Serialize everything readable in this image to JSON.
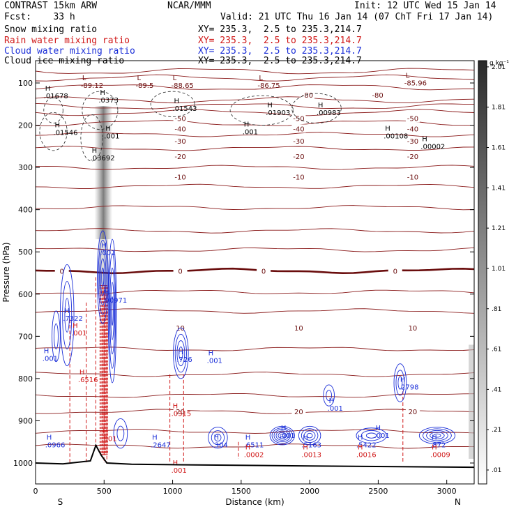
{
  "header": {
    "title": "CONTRAST 15km ARW",
    "forecast": "Fcst:    33 h",
    "center": "NCAR/MMM",
    "init": "Init: 12 UTC Wed 15 Jan 14",
    "valid": "Valid: 21 UTC Thu 16 Jan 14 (07 ChT Fri 17 Jan 14)",
    "fields": [
      {
        "label": "Snow mixing ratio",
        "xy": "XY= 235.3,  2.5 to 235.3,214.7",
        "color": "#000000"
      },
      {
        "label": "Rain water mixing ratio",
        "xy": "XY= 235.3,  2.5 to 235.3,214.7",
        "color": "#d01818"
      },
      {
        "label": "Cloud water mixing ratio",
        "xy": "XY= 235.3,  2.5 to 235.3,214.7",
        "color": "#1a2ed8"
      },
      {
        "label": "Cloud ice mixing ratio",
        "xy": "XY= 235.3,  2.5 to 235.3,214.7",
        "color": "#000000"
      }
    ]
  },
  "chart_data": {
    "type": "heatmap",
    "title": "Vertical cross-section",
    "xlabel": "Distance (km)",
    "ylabel": "Pressure (hPa)",
    "xlim": [
      0,
      3200
    ],
    "ylim": [
      1050,
      60
    ],
    "xticks": [
      0,
      500,
      1000,
      1500,
      2000,
      2500,
      3000
    ],
    "yticks": [
      100,
      200,
      300,
      400,
      500,
      600,
      700,
      800,
      900,
      1000
    ],
    "end_labels": {
      "left": "S",
      "right": "N"
    },
    "colorbar": {
      "unit": "g kg⁻¹",
      "ticks": [
        "2.01",
        "1.81",
        "1.61",
        "1.41",
        "1.21",
        "1.01",
        ".81",
        ".61",
        ".41",
        ".21",
        ".01"
      ],
      "range": [
        0.01,
        2.11
      ]
    },
    "temperature_isotherms": [
      {
        "label": "-80",
        "p": 128
      },
      {
        "label": "-50",
        "p": 183
      },
      {
        "label": "-40",
        "p": 208
      },
      {
        "label": "-30",
        "p": 237
      },
      {
        "label": "-20",
        "p": 273
      },
      {
        "label": "-10",
        "p": 322
      },
      {
        "label": "0",
        "p": 545
      },
      {
        "label": "10",
        "p": 680
      },
      {
        "label": "20",
        "p": 878
      }
    ],
    "surface_pressure": [
      {
        "x": 0,
        "p": 1000
      },
      {
        "x": 200,
        "p": 1002
      },
      {
        "x": 400,
        "p": 995
      },
      {
        "x": 440,
        "p": 958
      },
      {
        "x": 480,
        "p": 982
      },
      {
        "x": 520,
        "p": 1000
      },
      {
        "x": 700,
        "p": 1003
      },
      {
        "x": 1000,
        "p": 1004
      },
      {
        "x": 2000,
        "p": 1007
      },
      {
        "x": 3200,
        "p": 1010
      }
    ],
    "extrema_top": [
      {
        "type": "L",
        "x": 340,
        "p": 93,
        "label": "-89.12"
      },
      {
        "type": "L",
        "x": 740,
        "p": 93,
        "label": "-89.5"
      },
      {
        "type": "L",
        "x": 1000,
        "p": 93,
        "label": "-88.65"
      },
      {
        "type": "L",
        "x": 1630,
        "p": 93,
        "label": "-86.75"
      },
      {
        "type": "L",
        "x": 2700,
        "p": 88,
        "label": "-85.96"
      }
    ],
    "extrema_snow": [
      {
        "type": "H",
        "x": 70,
        "p": 118,
        "label": ".01678"
      },
      {
        "type": "H",
        "x": 470,
        "p": 128,
        "label": ".0373"
      },
      {
        "type": "H",
        "x": 1010,
        "p": 148,
        "label": ".01543"
      },
      {
        "type": "H",
        "x": 1690,
        "p": 158,
        "label": ".01903"
      },
      {
        "type": "H",
        "x": 2060,
        "p": 158,
        "label": ".00983"
      },
      {
        "type": "H",
        "x": 140,
        "p": 205,
        "label": ".01546"
      },
      {
        "type": "H",
        "x": 510,
        "p": 213,
        "label": ".001"
      },
      {
        "type": "H",
        "x": 410,
        "p": 265,
        "label": ".03692"
      },
      {
        "type": "H",
        "x": 2550,
        "p": 213,
        "label": ".00108"
      },
      {
        "type": "H",
        "x": 2820,
        "p": 238,
        "label": ".00002"
      },
      {
        "type": "H",
        "x": 1520,
        "p": 203,
        "label": ".001"
      }
    ],
    "extrema_cloud": [
      {
        "type": "H",
        "x": 480,
        "p": 490,
        "label": ".001"
      },
      {
        "type": "H",
        "x": 210,
        "p": 645,
        "label": ".7322"
      },
      {
        "type": "H",
        "x": 500,
        "p": 602,
        "label": ".00971"
      },
      {
        "type": "H",
        "x": 1040,
        "p": 742,
        "label": ".726"
      },
      {
        "type": "H",
        "x": 1260,
        "p": 745,
        "label": ".001"
      },
      {
        "type": "H",
        "x": 2660,
        "p": 808,
        "label": ".2798"
      },
      {
        "type": "H",
        "x": 2140,
        "p": 858,
        "label": ".001"
      },
      {
        "type": "H",
        "x": 60,
        "p": 740,
        "label": ".001"
      },
      {
        "type": "H",
        "x": 80,
        "p": 945,
        "label": ".0966"
      },
      {
        "type": "H",
        "x": 850,
        "p": 945,
        "label": ".2647"
      },
      {
        "type": "H",
        "x": 1300,
        "p": 945,
        "label": ".304"
      },
      {
        "type": "H",
        "x": 1530,
        "p": 945,
        "label": ".6511"
      },
      {
        "type": "H",
        "x": 1950,
        "p": 945,
        "label": ".5163"
      },
      {
        "type": "H",
        "x": 2350,
        "p": 945,
        "label": ".5422"
      },
      {
        "type": "H",
        "x": 2890,
        "p": 945,
        "label": ".872"
      },
      {
        "type": "H",
        "x": 1790,
        "p": 922,
        "label": ".001"
      },
      {
        "type": "H",
        "x": 2480,
        "p": 922,
        "label": ".001"
      }
    ],
    "extrema_rain": [
      {
        "type": "H",
        "x": 270,
        "p": 680,
        "label": ".001"
      },
      {
        "type": "H",
        "x": 320,
        "p": 790,
        "label": ".6516"
      },
      {
        "type": "H",
        "x": 490,
        "p": 930,
        "label": ".001"
      },
      {
        "type": "H",
        "x": 1000,
        "p": 870,
        "label": ".0315"
      },
      {
        "type": "H",
        "x": 1000,
        "p": 1005,
        "label": ".001"
      },
      {
        "type": "H",
        "x": 1530,
        "p": 968,
        "label": ".0002"
      },
      {
        "type": "H",
        "x": 1950,
        "p": 968,
        "label": ".0013"
      },
      {
        "type": "H",
        "x": 2350,
        "p": 968,
        "label": ".0016"
      },
      {
        "type": "H",
        "x": 2890,
        "p": 968,
        "label": ".0009"
      }
    ]
  }
}
